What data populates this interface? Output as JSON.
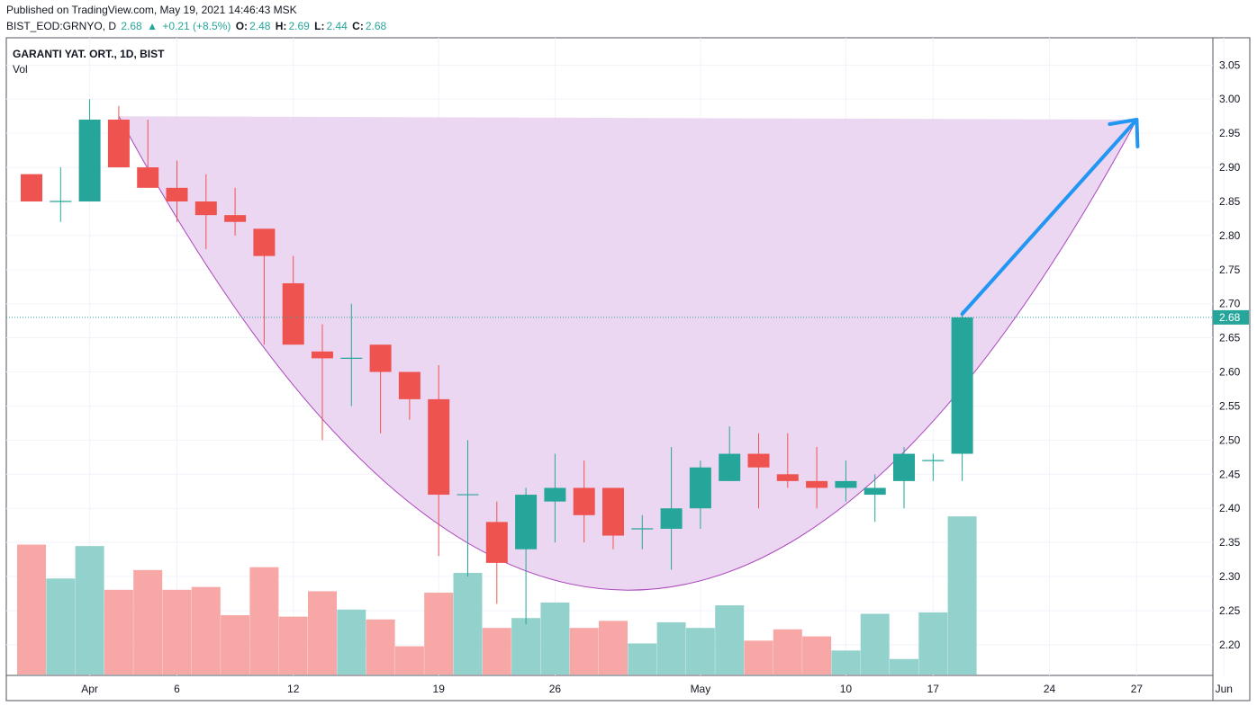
{
  "header": {
    "published": "Published on TradingView.com, May 19, 2021 14:46:43 MSK",
    "symbol": "BIST_EOD:GRNYO, D",
    "last": "2.68",
    "arrow": "▲",
    "change": "+0.21 (+8.5%)",
    "o_label": "O:",
    "o_value": "2.48",
    "h_label": "H:",
    "h_value": "2.69",
    "l_label": "L:",
    "l_value": "2.44",
    "c_label": "C:",
    "c_value": "2.68"
  },
  "pane": {
    "title": "GARANTI YAT. ORT., 1D, BIST",
    "volume_label": "Vol"
  },
  "colors": {
    "up": "#26a69a",
    "down": "#ef5350",
    "vol_up": "#93d2cc",
    "vol_down": "#f6a7a6",
    "pattern_fill": "#ead3f1",
    "pattern_stroke": "#ab47bc",
    "arrow": "#2196f3",
    "grid": "#f0f3fa",
    "price_line": "#26a69a"
  },
  "chart_data": {
    "type": "candlestick",
    "title": "GARANTI YAT. ORT., 1D, BIST",
    "price_axis": {
      "ticks": [
        "3.05",
        "3.00",
        "2.95",
        "2.90",
        "2.85",
        "2.80",
        "2.75",
        "2.70",
        "2.65",
        "2.60",
        "2.55",
        "2.50",
        "2.45",
        "2.40",
        "2.35",
        "2.30",
        "2.25",
        "2.20"
      ],
      "range": [
        2.155,
        3.09
      ],
      "last_price_label": "2.68"
    },
    "time_axis": {
      "labels": [
        {
          "text": "Apr",
          "bar": 2
        },
        {
          "text": "6",
          "bar": 5
        },
        {
          "text": "12",
          "bar": 9
        },
        {
          "text": "19",
          "bar": 14
        },
        {
          "text": "26",
          "bar": 18
        },
        {
          "text": "May",
          "bar": 23
        },
        {
          "text": "10",
          "bar": 28
        },
        {
          "text": "17",
          "bar": 31
        },
        {
          "text": "24",
          "bar": 35
        },
        {
          "text": "27",
          "bar": 38
        },
        {
          "text": "Jun",
          "bar": 41
        }
      ]
    },
    "candles": [
      {
        "o": 2.89,
        "h": 2.89,
        "l": 2.85,
        "c": 2.85,
        "v": 0.92
      },
      {
        "o": 2.85,
        "h": 2.9,
        "l": 2.82,
        "c": 2.85,
        "v": 0.68
      },
      {
        "o": 2.85,
        "h": 3.0,
        "l": 2.85,
        "c": 2.97,
        "v": 0.91
      },
      {
        "o": 2.97,
        "h": 2.99,
        "l": 2.9,
        "c": 2.9,
        "v": 0.6
      },
      {
        "o": 2.9,
        "h": 2.97,
        "l": 2.87,
        "c": 2.87,
        "v": 0.74
      },
      {
        "o": 2.87,
        "h": 2.91,
        "l": 2.82,
        "c": 2.85,
        "v": 0.6
      },
      {
        "o": 2.85,
        "h": 2.89,
        "l": 2.78,
        "c": 2.83,
        "v": 0.62
      },
      {
        "o": 2.83,
        "h": 2.87,
        "l": 2.8,
        "c": 2.82,
        "v": 0.42
      },
      {
        "o": 2.81,
        "h": 2.81,
        "l": 2.64,
        "c": 2.77,
        "v": 0.76
      },
      {
        "o": 2.73,
        "h": 2.77,
        "l": 2.64,
        "c": 2.64,
        "v": 0.41
      },
      {
        "o": 2.63,
        "h": 2.67,
        "l": 2.5,
        "c": 2.62,
        "v": 0.59
      },
      {
        "o": 2.62,
        "h": 2.7,
        "l": 2.55,
        "c": 2.62,
        "v": 0.46
      },
      {
        "o": 2.64,
        "h": 2.64,
        "l": 2.51,
        "c": 2.6,
        "v": 0.39
      },
      {
        "o": 2.6,
        "h": 2.6,
        "l": 2.53,
        "c": 2.56,
        "v": 0.2
      },
      {
        "o": 2.56,
        "h": 2.61,
        "l": 2.33,
        "c": 2.42,
        "v": 0.58
      },
      {
        "o": 2.42,
        "h": 2.5,
        "l": 2.3,
        "c": 2.42,
        "v": 0.72
      },
      {
        "o": 2.38,
        "h": 2.41,
        "l": 2.26,
        "c": 2.32,
        "v": 0.33
      },
      {
        "o": 2.34,
        "h": 2.43,
        "l": 2.23,
        "c": 2.42,
        "v": 0.4
      },
      {
        "o": 2.41,
        "h": 2.48,
        "l": 2.35,
        "c": 2.43,
        "v": 0.51
      },
      {
        "o": 2.43,
        "h": 2.47,
        "l": 2.35,
        "c": 2.39,
        "v": 0.33
      },
      {
        "o": 2.43,
        "h": 2.43,
        "l": 2.34,
        "c": 2.36,
        "v": 0.38
      },
      {
        "o": 2.37,
        "h": 2.39,
        "l": 2.34,
        "c": 2.37,
        "v": 0.22
      },
      {
        "o": 2.37,
        "h": 2.49,
        "l": 2.31,
        "c": 2.4,
        "v": 0.37
      },
      {
        "o": 2.4,
        "h": 2.47,
        "l": 2.37,
        "c": 2.46,
        "v": 0.33
      },
      {
        "o": 2.44,
        "h": 2.52,
        "l": 2.44,
        "c": 2.48,
        "v": 0.49
      },
      {
        "o": 2.48,
        "h": 2.51,
        "l": 2.4,
        "c": 2.46,
        "v": 0.24
      },
      {
        "o": 2.45,
        "h": 2.51,
        "l": 2.43,
        "c": 2.44,
        "v": 0.32
      },
      {
        "o": 2.44,
        "h": 2.49,
        "l": 2.4,
        "c": 2.43,
        "v": 0.27
      },
      {
        "o": 2.43,
        "h": 2.47,
        "l": 2.41,
        "c": 2.44,
        "v": 0.17
      },
      {
        "o": 2.42,
        "h": 2.45,
        "l": 2.38,
        "c": 2.43,
        "v": 0.43
      },
      {
        "o": 2.44,
        "h": 2.49,
        "l": 2.4,
        "c": 2.48,
        "v": 0.11
      },
      {
        "o": 2.47,
        "h": 2.48,
        "l": 2.44,
        "c": 2.47,
        "v": 0.44
      },
      {
        "o": 2.48,
        "h": 2.69,
        "l": 2.44,
        "c": 2.68,
        "v": 1.12
      }
    ],
    "annotations": [
      {
        "type": "cup-pattern",
        "start": {
          "bar": 3,
          "price": 2.975
        },
        "end": {
          "bar": 38,
          "price": 2.97
        },
        "bottom": {
          "bar": 20.5,
          "price": 2.28
        }
      },
      {
        "type": "arrow",
        "from": {
          "bar": 32,
          "price": 2.685
        },
        "to": {
          "bar": 38,
          "price": 2.97
        }
      }
    ]
  }
}
